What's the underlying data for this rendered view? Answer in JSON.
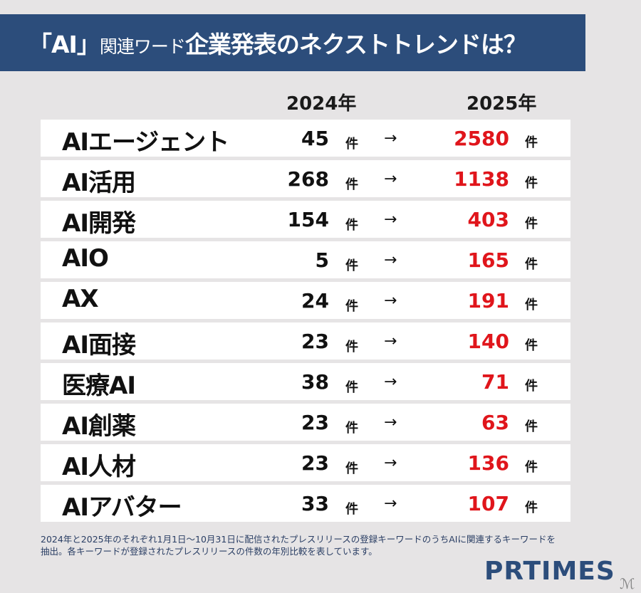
{
  "header": {
    "title_part1": "「AI」",
    "title_part2": "関連ワード",
    "title_part3": "企業発表のネクストトレンドは？"
  },
  "columns": {
    "year1": "2024年",
    "year2": "2025年"
  },
  "unit": "件",
  "arrow": "→",
  "rows": [
    {
      "keyword": "AIエージェント",
      "y2024": "45",
      "y2025": "2580"
    },
    {
      "keyword": "AI活用",
      "y2024": "268",
      "y2025": "1138"
    },
    {
      "keyword": "AI開発",
      "y2024": "154",
      "y2025": "403"
    },
    {
      "keyword": "AIO",
      "y2024": "5",
      "y2025": "165"
    },
    {
      "keyword": "AX",
      "y2024": "24",
      "y2025": "191"
    },
    {
      "keyword": "AI面接",
      "y2024": "23",
      "y2025": "140"
    },
    {
      "keyword": "医療AI",
      "y2024": "38",
      "y2025": "71"
    },
    {
      "keyword": "AI創薬",
      "y2024": "23",
      "y2025": "63"
    },
    {
      "keyword": "AI人材",
      "y2024": "23",
      "y2025": "136"
    },
    {
      "keyword": "AIアバター",
      "y2024": "33",
      "y2025": "107"
    }
  ],
  "footnote": {
    "line1": "2024年と2025年のそれぞれ1月1日～10月31日に配信されたプレスリリースの登録キーワードのうちAIに関連するキーワードを",
    "line2": "抽出。各キーワードが登録されたプレスリリースの件数の年別比較を表しています。"
  },
  "logo": "PRTIMES",
  "colors": {
    "banner": "#2c4d7b",
    "highlight": "#e0151b",
    "background": "#e6e4e5"
  },
  "chart_data": {
    "type": "table",
    "title": "「AI」関連ワード企業発表のネクストトレンドは？",
    "categories": [
      "AIエージェント",
      "AI活用",
      "AI開発",
      "AIO",
      "AX",
      "AI面接",
      "医療AI",
      "AI創薬",
      "AI人材",
      "AIアバター"
    ],
    "series": [
      {
        "name": "2024年",
        "values": [
          45,
          268,
          154,
          5,
          24,
          23,
          38,
          23,
          23,
          33
        ]
      },
      {
        "name": "2025年",
        "values": [
          2580,
          1138,
          403,
          165,
          191,
          140,
          71,
          63,
          136,
          107
        ]
      }
    ],
    "unit": "件",
    "note": "2024年と2025年のそれぞれ1月1日～10月31日に配信されたプレスリリースの登録キーワードのうちAIに関連するキーワードを抽出。各キーワードが登録されたプレスリリースの件数の年別比較を表しています。"
  }
}
